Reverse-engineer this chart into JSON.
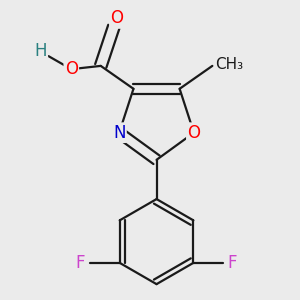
{
  "background_color": "#ebebeb",
  "bond_color": "#1a1a1a",
  "bond_width": 1.6,
  "atom_colors": {
    "O": "#ff0000",
    "N": "#0000cc",
    "F": "#cc44cc",
    "H": "#2a8080",
    "C": "#1a1a1a"
  },
  "font_size": 12
}
